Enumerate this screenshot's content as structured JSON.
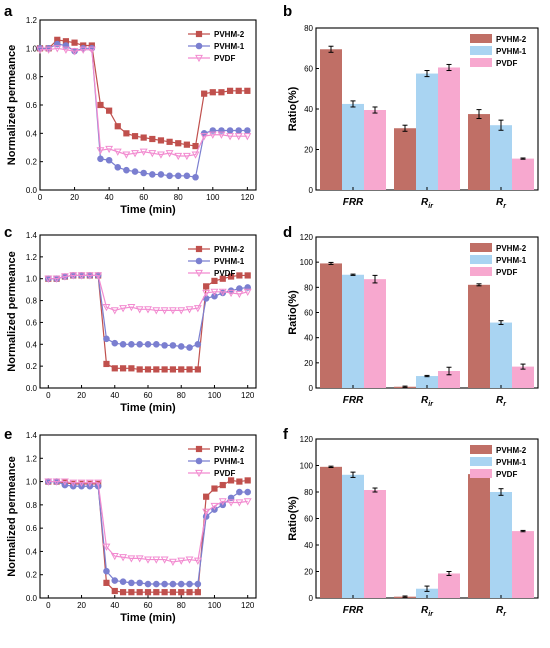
{
  "figure": {
    "panels": [
      {
        "letter": "a"
      },
      {
        "letter": "b"
      },
      {
        "letter": "c"
      },
      {
        "letter": "d"
      },
      {
        "letter": "e"
      },
      {
        "letter": "f"
      }
    ]
  },
  "chart_data": [
    {
      "panel": "a",
      "type": "line",
      "xlabel": "Time (min)",
      "ylabel": "Normalized permeance",
      "xlim": [
        0,
        125
      ],
      "ylim": [
        0,
        1.2
      ],
      "xticks": [
        "0",
        "20",
        "40",
        "60",
        "80",
        "100",
        "120"
      ],
      "yticks": [
        "0.0",
        "0.2",
        "0.4",
        "0.6",
        "0.8",
        "1.0",
        "1.2"
      ],
      "legend_position": "top-right",
      "series": [
        {
          "name": "PVHM-2",
          "color": "#c0504d",
          "marker": "square",
          "x": [
            0,
            5,
            10,
            15,
            20,
            25,
            30,
            35,
            40,
            45,
            50,
            55,
            60,
            65,
            70,
            75,
            80,
            85,
            90,
            95,
            100,
            105,
            110,
            115,
            120
          ],
          "y": [
            1.0,
            1.0,
            1.06,
            1.05,
            1.04,
            1.02,
            1.02,
            0.6,
            0.56,
            0.45,
            0.4,
            0.38,
            0.37,
            0.36,
            0.35,
            0.34,
            0.33,
            0.32,
            0.31,
            0.68,
            0.69,
            0.69,
            0.7,
            0.7,
            0.7
          ]
        },
        {
          "name": "PVHM-1",
          "color": "#7b7fd0",
          "marker": "circle",
          "x": [
            0,
            5,
            10,
            15,
            20,
            25,
            30,
            35,
            40,
            45,
            50,
            55,
            60,
            65,
            70,
            75,
            80,
            85,
            90,
            95,
            100,
            105,
            110,
            115,
            120
          ],
          "y": [
            1.0,
            1.0,
            1.03,
            1.02,
            0.98,
            1.0,
            1.0,
            0.22,
            0.21,
            0.16,
            0.14,
            0.13,
            0.12,
            0.11,
            0.11,
            0.1,
            0.1,
            0.1,
            0.09,
            0.4,
            0.42,
            0.42,
            0.42,
            0.42,
            0.42
          ]
        },
        {
          "name": "PVDF",
          "color": "#f28bd0",
          "marker": "triangle-down",
          "x": [
            0,
            5,
            10,
            15,
            20,
            25,
            30,
            35,
            40,
            45,
            50,
            55,
            60,
            65,
            70,
            75,
            80,
            85,
            90,
            95,
            100,
            105,
            110,
            115,
            120
          ],
          "y": [
            0.99,
            0.99,
            1.0,
            0.99,
            0.98,
            0.99,
            0.99,
            0.28,
            0.29,
            0.27,
            0.25,
            0.26,
            0.27,
            0.26,
            0.25,
            0.26,
            0.24,
            0.24,
            0.25,
            0.38,
            0.39,
            0.39,
            0.38,
            0.38,
            0.38
          ]
        }
      ]
    },
    {
      "panel": "b",
      "type": "bar",
      "ylabel": "Ratio(%)",
      "ylim": [
        0,
        80
      ],
      "yticks": [
        "0",
        "20",
        "40",
        "60",
        "80"
      ],
      "categories": [
        {
          "main": "FRR",
          "sub": ""
        },
        {
          "main": "R",
          "sub": "ir"
        },
        {
          "main": "R",
          "sub": "r"
        }
      ],
      "legend_position": "top-right",
      "series": [
        {
          "name": "PVHM-2",
          "color": "#c06f66",
          "values": [
            69.5,
            30.5,
            37.5
          ],
          "errors": [
            1.5,
            1.5,
            2.2
          ]
        },
        {
          "name": "PVHM-1",
          "color": "#a9d4f2",
          "values": [
            42.5,
            57.5,
            32.0
          ],
          "errors": [
            1.5,
            1.5,
            2.5
          ]
        },
        {
          "name": "PVDF",
          "color": "#f7a8cf",
          "values": [
            39.5,
            60.5,
            15.5
          ],
          "errors": [
            1.5,
            1.5,
            0.3
          ]
        }
      ]
    },
    {
      "panel": "c",
      "type": "line",
      "xlabel": "Time (min)",
      "ylabel": "Normalized permeance",
      "xlim": [
        -5,
        125
      ],
      "ylim": [
        0,
        1.4
      ],
      "xticks": [
        "0",
        "20",
        "40",
        "60",
        "80",
        "100",
        "120"
      ],
      "yticks": [
        "0.0",
        "0.2",
        "0.4",
        "0.6",
        "0.8",
        "1.0",
        "1.2",
        "1.4"
      ],
      "legend_position": "top-right",
      "series": [
        {
          "name": "PVHM-2",
          "color": "#c0504d",
          "marker": "square",
          "x": [
            0,
            5,
            10,
            15,
            20,
            25,
            30,
            35,
            40,
            45,
            50,
            55,
            60,
            65,
            70,
            75,
            80,
            85,
            90,
            95,
            100,
            105,
            110,
            115,
            120
          ],
          "y": [
            1.0,
            1.0,
            1.02,
            1.03,
            1.03,
            1.03,
            1.03,
            0.22,
            0.18,
            0.18,
            0.18,
            0.17,
            0.17,
            0.17,
            0.17,
            0.17,
            0.17,
            0.17,
            0.17,
            0.93,
            0.98,
            1.0,
            1.02,
            1.03,
            1.03
          ]
        },
        {
          "name": "PVHM-1",
          "color": "#7b7fd0",
          "marker": "circle",
          "x": [
            0,
            5,
            10,
            15,
            20,
            25,
            30,
            35,
            40,
            45,
            50,
            55,
            60,
            65,
            70,
            75,
            80,
            85,
            90,
            95,
            100,
            105,
            110,
            115,
            120
          ],
          "y": [
            1.0,
            1.0,
            1.02,
            1.03,
            1.03,
            1.03,
            1.03,
            0.45,
            0.41,
            0.4,
            0.4,
            0.4,
            0.4,
            0.4,
            0.39,
            0.39,
            0.38,
            0.37,
            0.4,
            0.82,
            0.84,
            0.87,
            0.89,
            0.91,
            0.92
          ]
        },
        {
          "name": "PVDF",
          "color": "#f28bd0",
          "marker": "triangle-down",
          "x": [
            0,
            5,
            10,
            15,
            20,
            25,
            30,
            35,
            40,
            45,
            50,
            55,
            60,
            65,
            70,
            75,
            80,
            85,
            90,
            95,
            100,
            105,
            110,
            115,
            120
          ],
          "y": [
            1.0,
            1.0,
            1.02,
            1.03,
            1.03,
            1.03,
            1.03,
            0.74,
            0.71,
            0.73,
            0.74,
            0.72,
            0.72,
            0.71,
            0.71,
            0.71,
            0.71,
            0.72,
            0.73,
            0.87,
            0.88,
            0.88,
            0.87,
            0.86,
            0.88
          ]
        }
      ]
    },
    {
      "panel": "d",
      "type": "bar",
      "ylabel": "Ratio(%)",
      "ylim": [
        0,
        120
      ],
      "yticks": [
        "0",
        "20",
        "40",
        "60",
        "80",
        "100",
        "120"
      ],
      "categories": [
        {
          "main": "FRR",
          "sub": ""
        },
        {
          "main": "R",
          "sub": "ir"
        },
        {
          "main": "R",
          "sub": "r"
        }
      ],
      "legend_position": "top-right",
      "series": [
        {
          "name": "PVHM-2",
          "color": "#c06f66",
          "values": [
            99.0,
            1.0,
            82.0
          ],
          "errors": [
            0.8,
            0.5,
            0.8
          ]
        },
        {
          "name": "PVHM-1",
          "color": "#a9d4f2",
          "values": [
            90.0,
            9.5,
            52.0
          ],
          "errors": [
            0.5,
            0.5,
            1.5
          ]
        },
        {
          "name": "PVDF",
          "color": "#f7a8cf",
          "values": [
            86.5,
            13.5,
            17.0
          ],
          "errors": [
            3.0,
            3.0,
            2.0
          ]
        }
      ]
    },
    {
      "panel": "e",
      "type": "line",
      "xlabel": "Time (min)",
      "ylabel": "Normalized permeance",
      "xlim": [
        -5,
        125
      ],
      "ylim": [
        0,
        1.4
      ],
      "xticks": [
        "0",
        "20",
        "40",
        "60",
        "80",
        "100",
        "120"
      ],
      "yticks": [
        "0.0",
        "0.2",
        "0.4",
        "0.6",
        "0.8",
        "1.0",
        "1.2",
        "1.4"
      ],
      "legend_position": "top-right",
      "series": [
        {
          "name": "PVHM-2",
          "color": "#c0504d",
          "marker": "square",
          "x": [
            0,
            5,
            10,
            15,
            20,
            25,
            30,
            35,
            40,
            45,
            50,
            55,
            60,
            65,
            70,
            75,
            80,
            85,
            90,
            95,
            100,
            105,
            110,
            115,
            120
          ],
          "y": [
            1.0,
            1.0,
            0.99,
            0.98,
            0.98,
            0.98,
            0.98,
            0.13,
            0.06,
            0.05,
            0.05,
            0.05,
            0.05,
            0.05,
            0.05,
            0.05,
            0.05,
            0.05,
            0.05,
            0.87,
            0.94,
            0.97,
            1.01,
            1.0,
            1.01
          ]
        },
        {
          "name": "PVHM-1",
          "color": "#7b7fd0",
          "marker": "circle",
          "x": [
            0,
            5,
            10,
            15,
            20,
            25,
            30,
            35,
            40,
            45,
            50,
            55,
            60,
            65,
            70,
            75,
            80,
            85,
            90,
            95,
            100,
            105,
            110,
            115,
            120
          ],
          "y": [
            1.0,
            1.0,
            0.97,
            0.96,
            0.96,
            0.96,
            0.96,
            0.23,
            0.15,
            0.14,
            0.13,
            0.13,
            0.12,
            0.12,
            0.12,
            0.12,
            0.12,
            0.12,
            0.12,
            0.7,
            0.76,
            0.8,
            0.86,
            0.91,
            0.91
          ]
        },
        {
          "name": "PVDF",
          "color": "#f28bd0",
          "marker": "triangle-down",
          "x": [
            0,
            5,
            10,
            15,
            20,
            25,
            30,
            35,
            40,
            45,
            50,
            55,
            60,
            65,
            70,
            75,
            80,
            85,
            90,
            95,
            100,
            105,
            110,
            115,
            120
          ],
          "y": [
            1.0,
            1.0,
            1.0,
            0.99,
            0.99,
            0.99,
            0.99,
            0.44,
            0.36,
            0.35,
            0.34,
            0.34,
            0.33,
            0.33,
            0.33,
            0.31,
            0.32,
            0.33,
            0.32,
            0.74,
            0.79,
            0.83,
            0.82,
            0.82,
            0.83
          ]
        }
      ]
    },
    {
      "panel": "f",
      "type": "bar",
      "ylabel": "Ratio(%)",
      "ylim": [
        0,
        120
      ],
      "yticks": [
        "0",
        "20",
        "40",
        "60",
        "80",
        "100",
        "120"
      ],
      "categories": [
        {
          "main": "FRR",
          "sub": ""
        },
        {
          "main": "R",
          "sub": "ir"
        },
        {
          "main": "R",
          "sub": "r"
        }
      ],
      "legend_position": "top-right",
      "series": [
        {
          "name": "PVHM-2",
          "color": "#c06f66",
          "values": [
            99.0,
            1.0,
            93.5
          ],
          "errors": [
            0.5,
            0.5,
            1.0
          ]
        },
        {
          "name": "PVHM-1",
          "color": "#a9d4f2",
          "values": [
            93.0,
            7.0,
            80.0
          ],
          "errors": [
            2.0,
            2.0,
            2.5
          ]
        },
        {
          "name": "PVDF",
          "color": "#f7a8cf",
          "values": [
            81.5,
            18.5,
            50.5
          ],
          "errors": [
            1.5,
            1.5,
            0.5
          ]
        }
      ]
    }
  ]
}
